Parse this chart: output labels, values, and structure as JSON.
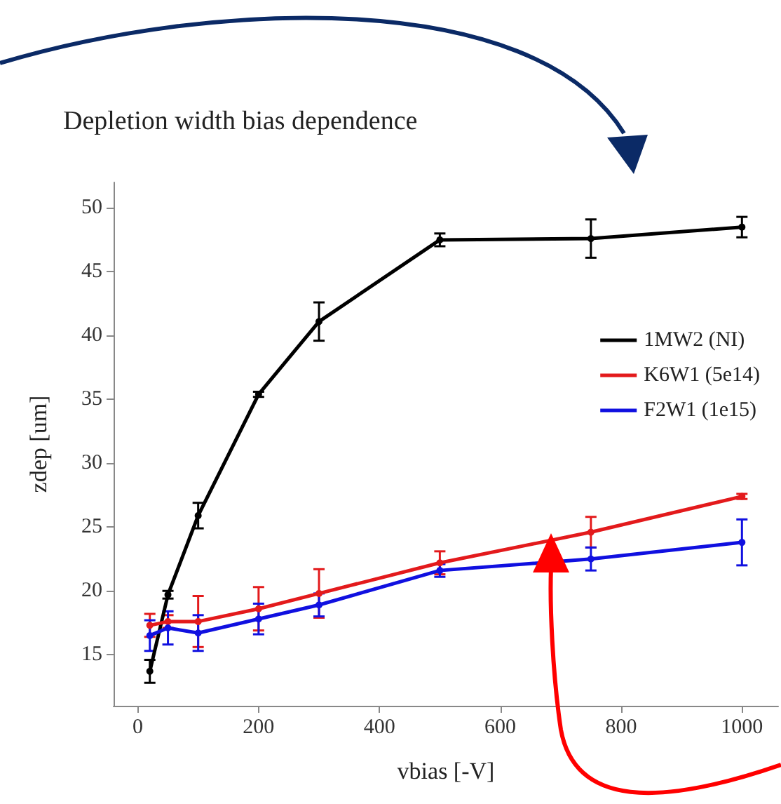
{
  "chart_data": {
    "type": "line",
    "title": "Depletion width bias dependence",
    "xlabel": "vbias [-V]",
    "ylabel": "zdep [um]",
    "x": [
      20,
      50,
      100,
      200,
      300,
      500,
      750,
      1000
    ],
    "series": [
      {
        "name": "1MW2 (NI)",
        "color": "#000000",
        "values": [
          13.7,
          19.7,
          25.9,
          35.4,
          41.1,
          47.5,
          47.6,
          48.5
        ],
        "errors": [
          0.9,
          0.3,
          1.0,
          0.2,
          1.5,
          0.5,
          1.5,
          0.8
        ]
      },
      {
        "name": "K6W1 (5e14)",
        "color": "#e31a1c",
        "values": [
          17.3,
          17.6,
          17.6,
          18.6,
          19.8,
          22.2,
          24.6,
          27.4
        ],
        "errors": [
          0.9,
          0.5,
          2.0,
          1.7,
          1.9,
          0.9,
          1.2,
          0.2
        ]
      },
      {
        "name": "F2W1 (1e15)",
        "color": "#1010e0",
        "values": [
          16.5,
          17.1,
          16.7,
          17.8,
          18.9,
          21.6,
          22.5,
          23.8
        ],
        "errors": [
          1.2,
          1.3,
          1.4,
          1.2,
          0.9,
          0.5,
          0.9,
          1.8
        ]
      }
    ],
    "xlim": [
      -40,
      1060
    ],
    "xticks": [
      0,
      200,
      400,
      600,
      800,
      1000
    ],
    "ylim": [
      11,
      52
    ],
    "yticks": [
      15,
      20,
      25,
      30,
      35,
      40,
      45,
      50
    ],
    "grid": false,
    "legend": "right",
    "marker": "circle",
    "line_style": "solid"
  }
}
